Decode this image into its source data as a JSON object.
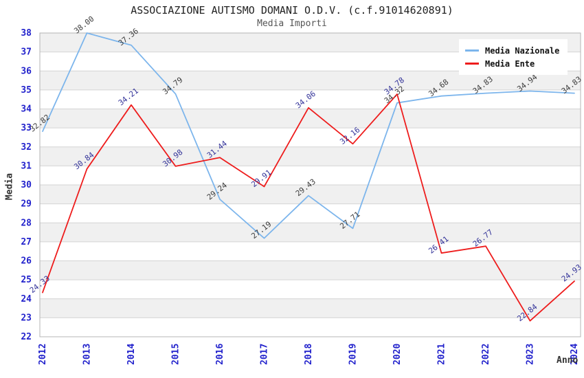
{
  "header": {
    "title": "ASSOCIAZIONE AUTISMO DOMANI O.D.V. (c.f.91014620891)",
    "subtitle": "Media Importi"
  },
  "chart_data": {
    "type": "line",
    "title": "ASSOCIAZIONE AUTISMO DOMANI O.D.V. (c.f.91014620891)",
    "subtitle": "Media Importi",
    "xlabel": "Anno",
    "ylabel": "Media",
    "x": [
      "2012",
      "2013",
      "2014",
      "2015",
      "2016",
      "2017",
      "2018",
      "2019",
      "2020",
      "2021",
      "2022",
      "2023",
      "2024"
    ],
    "series": [
      {
        "name": "Media Nazionale",
        "color": "#7cb5ec",
        "label_color": "#3c3c3c",
        "values": [
          32.82,
          38.0,
          37.36,
          34.79,
          29.24,
          27.19,
          29.43,
          27.71,
          34.32,
          34.68,
          34.83,
          34.94,
          34.83
        ]
      },
      {
        "name": "Media Ente",
        "color": "#ee1c1c",
        "label_color": "#333399",
        "values": [
          24.33,
          30.84,
          34.21,
          30.98,
          31.44,
          29.91,
          34.06,
          32.16,
          34.78,
          26.41,
          26.77,
          22.84,
          24.93
        ]
      }
    ],
    "ylim": [
      22,
      38
    ],
    "y_tick_step": 1,
    "grid": true,
    "banded_background": true,
    "legend_position": "top-right",
    "colors": {
      "band": "#f0f0f0",
      "grid": "#d4d4d4",
      "border": "#b4b4b4",
      "tick_label": "#2222cc",
      "axis_title": "#333333"
    }
  }
}
